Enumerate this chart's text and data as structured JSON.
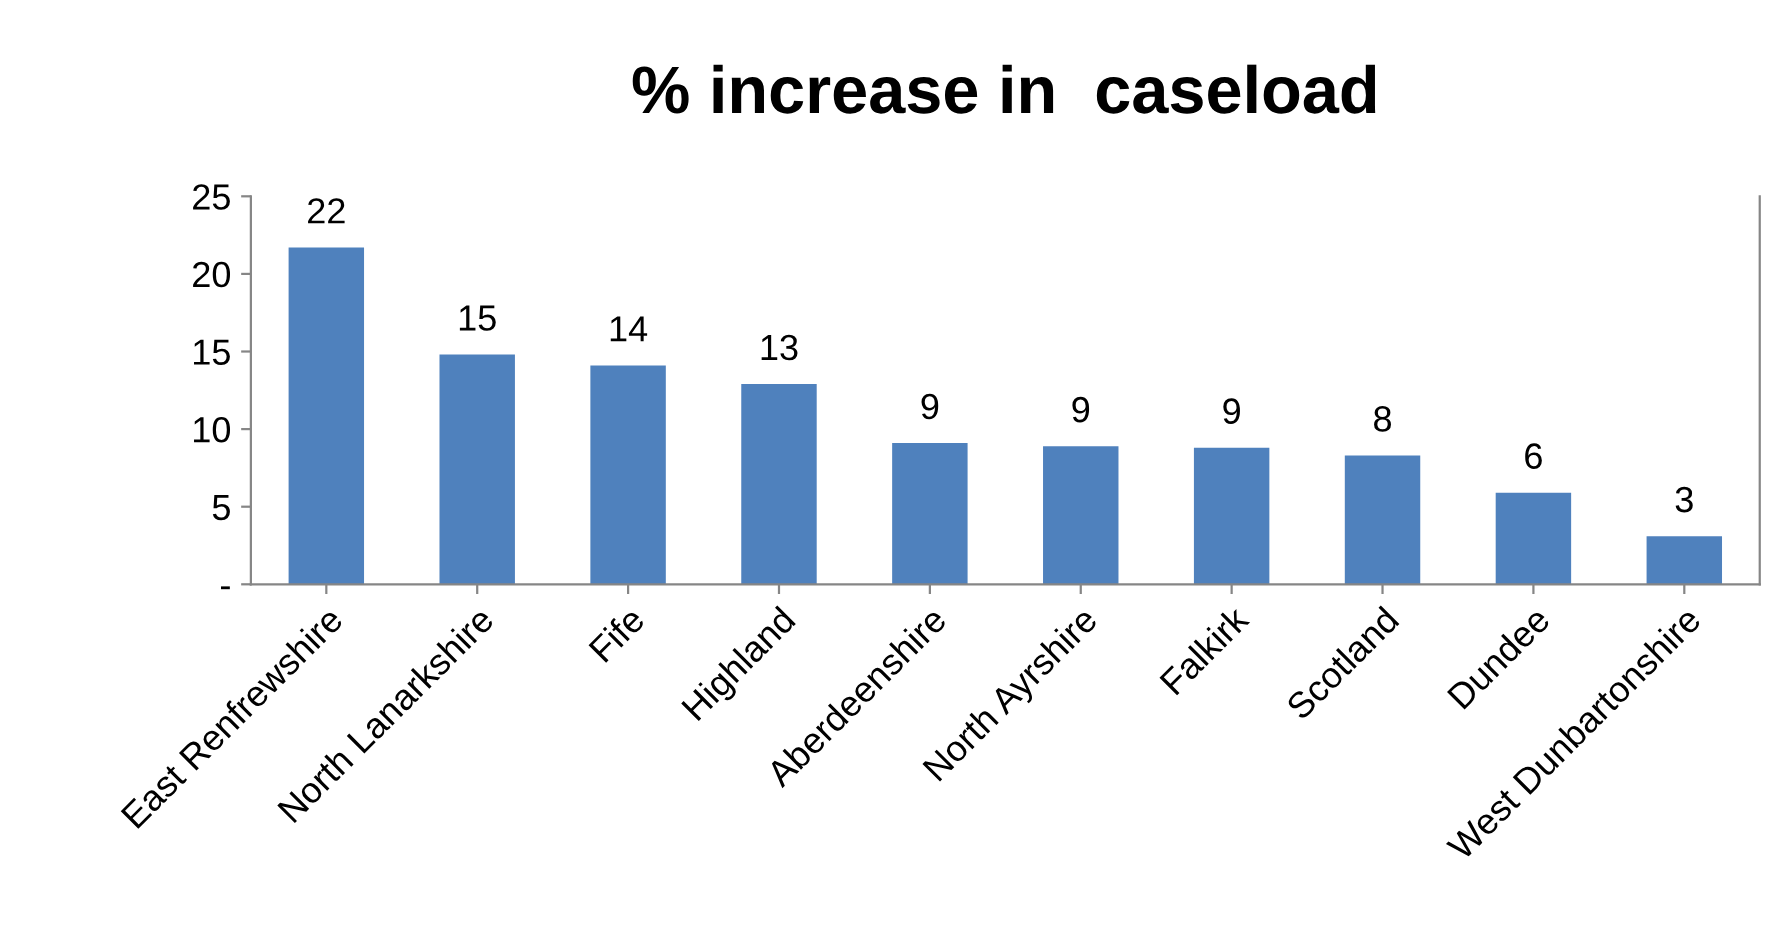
{
  "chart_data": {
    "type": "bar",
    "title": "% increase in  caseload",
    "categories": [
      "East Renfrewshire",
      "North Lanarkshire",
      "Fife",
      "Highland",
      "Aberdeenshire",
      "North Ayrshire",
      "Falkirk",
      "Scotland",
      "Dundee",
      "West Dunbartonshire"
    ],
    "values": [
      21.7,
      14.8,
      14.1,
      12.9,
      9.1,
      8.9,
      8.8,
      8.3,
      5.9,
      3.1
    ],
    "value_labels": [
      "22",
      "15",
      "14",
      "13",
      "9",
      "9",
      "9",
      "8",
      "6",
      "3"
    ],
    "color": "#4f81bd",
    "ylim": [
      0,
      25
    ],
    "yticks": [
      {
        "value": 0,
        "label": "-"
      },
      5,
      10,
      15,
      20,
      25
    ],
    "grid": false,
    "legend": false
  }
}
